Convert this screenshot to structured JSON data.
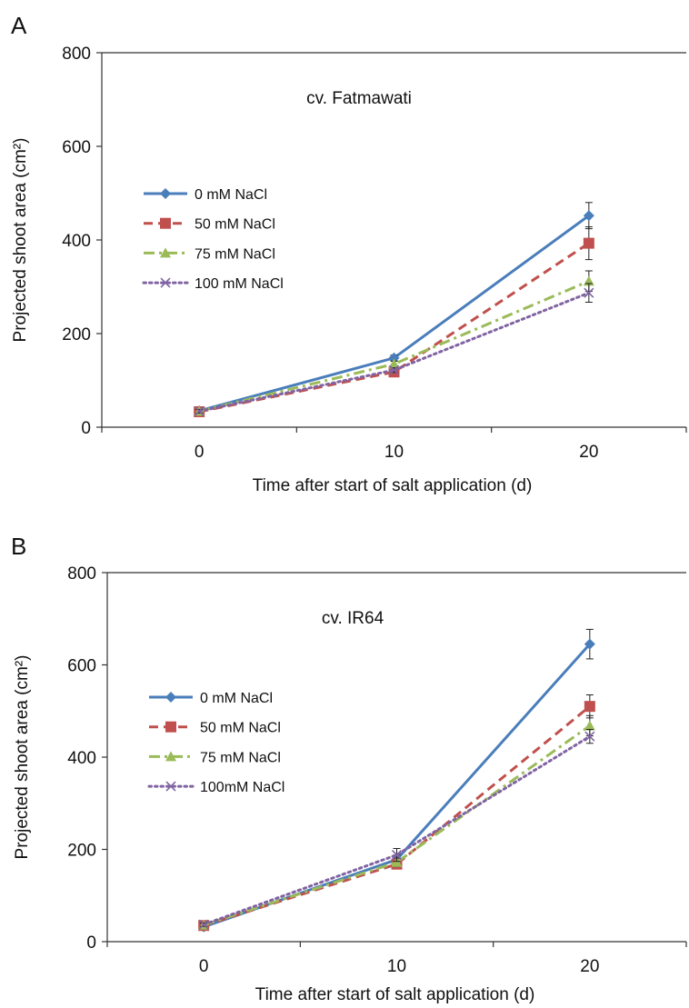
{
  "chart_data": [
    {
      "type": "line",
      "panel": "A",
      "title": "cv. Fatmawati",
      "xlabel": "Time after start of salt application (d)",
      "ylabel": "Projected shoot area (cm²)",
      "x": [
        0,
        10,
        20
      ],
      "xticks": [
        "0",
        "10",
        "20"
      ],
      "xlim": [
        -5,
        25
      ],
      "ylim": [
        0,
        800
      ],
      "yticks": [
        0,
        200,
        400,
        600,
        800
      ],
      "grid": false,
      "legend": "left",
      "series": [
        {
          "name": "0 mM NaCl",
          "values": [
            35,
            148,
            452
          ],
          "errors": [
            4,
            6,
            28
          ],
          "color": "#4a7ebb",
          "dash": "solid",
          "marker": "diamond"
        },
        {
          "name": "50 mM NaCl",
          "values": [
            33,
            118,
            393
          ],
          "errors": [
            4,
            5,
            35
          ],
          "color": "#c0504d",
          "dash": "dash",
          "marker": "square"
        },
        {
          "name": "75 mM NaCl",
          "values": [
            34,
            135,
            312
          ],
          "errors": [
            4,
            6,
            22
          ],
          "color": "#9bbb59",
          "dash": "dashdot",
          "marker": "triangle"
        },
        {
          "name": "100 mM NaCl",
          "values": [
            34,
            122,
            287
          ],
          "errors": [
            4,
            5,
            20
          ],
          "color": "#8064a2",
          "dash": "dot",
          "marker": "x"
        }
      ]
    },
    {
      "type": "line",
      "panel": "B",
      "title": "cv. IR64",
      "xlabel": "Time after start of salt application (d)",
      "ylabel": "Projected shoot area (cm²)",
      "x": [
        0,
        10,
        20
      ],
      "xticks": [
        "0",
        "10",
        "20"
      ],
      "xlim": [
        -5,
        25
      ],
      "ylim": [
        0,
        800
      ],
      "yticks": [
        0,
        200,
        400,
        600,
        800
      ],
      "grid": false,
      "legend": "left",
      "series": [
        {
          "name": "0 mM NaCl",
          "values": [
            32,
            178,
            645
          ],
          "errors": [
            4,
            10,
            32
          ],
          "color": "#4a7ebb",
          "dash": "solid",
          "marker": "diamond"
        },
        {
          "name": "50 mM NaCl",
          "values": [
            35,
            168,
            510
          ],
          "errors": [
            4,
            8,
            25
          ],
          "color": "#c0504d",
          "dash": "dash",
          "marker": "square"
        },
        {
          "name": "75 mM NaCl",
          "values": [
            36,
            172,
            468
          ],
          "errors": [
            4,
            9,
            22
          ],
          "color": "#9bbb59",
          "dash": "dashdot",
          "marker": "triangle"
        },
        {
          "name": "100mM NaCl",
          "values": [
            37,
            188,
            445
          ],
          "errors": [
            4,
            14,
            15
          ],
          "color": "#8064a2",
          "dash": "dot",
          "marker": "x"
        }
      ]
    }
  ]
}
